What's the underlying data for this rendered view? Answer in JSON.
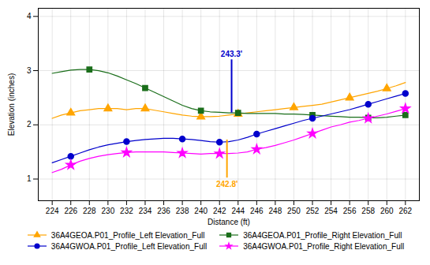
{
  "chart_data": {
    "type": "line",
    "xlabel": "Distance (ft)",
    "ylabel": "Elevation (inches)",
    "xlim": [
      222.5,
      263.5
    ],
    "ylim": [
      0.6,
      4.15
    ],
    "xticks": [
      224,
      226,
      228,
      230,
      232,
      234,
      236,
      238,
      240,
      242,
      244,
      246,
      248,
      250,
      252,
      254,
      256,
      258,
      260,
      262
    ],
    "yticks": [
      1,
      2,
      3,
      4
    ],
    "grid": true,
    "x": [
      224,
      225,
      226,
      227,
      228,
      229,
      230,
      231,
      232,
      233,
      234,
      235,
      236,
      237,
      238,
      239,
      240,
      241,
      242,
      243,
      244,
      245,
      246,
      247,
      248,
      249,
      250,
      251,
      252,
      253,
      254,
      255,
      256,
      257,
      258,
      259,
      260,
      261,
      262
    ],
    "series": [
      {
        "name": "36A4GEOA.P01_Profile_Left Elevation_Full",
        "color": "#FFA500",
        "marker": "triangle",
        "values": [
          2.12,
          2.18,
          2.22,
          2.26,
          2.28,
          2.3,
          2.3,
          2.3,
          2.28,
          2.3,
          2.3,
          2.27,
          2.24,
          2.21,
          2.18,
          2.16,
          2.15,
          2.15,
          2.16,
          2.18,
          2.2,
          2.22,
          2.24,
          2.26,
          2.28,
          2.3,
          2.32,
          2.34,
          2.36,
          2.38,
          2.42,
          2.46,
          2.5,
          2.54,
          2.58,
          2.62,
          2.67,
          2.72,
          2.78
        ],
        "marker_x": [
          226,
          230,
          234,
          240,
          244,
          250,
          256,
          260
        ],
        "marker_values": [
          2.22,
          2.3,
          2.3,
          2.15,
          2.2,
          2.32,
          2.5,
          2.67
        ]
      },
      {
        "name": "36A4GEOA.P01_Profile_Right Elevation_Full",
        "color": "#1a6e1a",
        "marker": "square",
        "values": [
          2.95,
          2.98,
          3.01,
          3.02,
          3.02,
          3.0,
          2.96,
          2.9,
          2.83,
          2.76,
          2.68,
          2.6,
          2.52,
          2.44,
          2.36,
          2.3,
          2.26,
          2.24,
          2.23,
          2.22,
          2.22,
          2.21,
          2.21,
          2.21,
          2.21,
          2.2,
          2.2,
          2.19,
          2.18,
          2.17,
          2.16,
          2.15,
          2.14,
          2.14,
          2.13,
          2.13,
          2.14,
          2.16,
          2.18
        ],
        "marker_x": [
          228,
          234,
          240,
          244,
          252,
          258,
          262
        ],
        "marker_values": [
          3.02,
          2.68,
          2.26,
          2.22,
          2.18,
          2.13,
          2.18
        ]
      },
      {
        "name": "36A4GWOA.P01_Profile_Left Elevation_Full",
        "color": "#0000cc",
        "marker": "circle",
        "values": [
          1.3,
          1.36,
          1.42,
          1.48,
          1.54,
          1.59,
          1.63,
          1.66,
          1.69,
          1.71,
          1.73,
          1.74,
          1.75,
          1.75,
          1.74,
          1.73,
          1.71,
          1.69,
          1.68,
          1.69,
          1.72,
          1.77,
          1.83,
          1.88,
          1.93,
          1.98,
          2.03,
          2.08,
          2.12,
          2.16,
          2.2,
          2.24,
          2.28,
          2.33,
          2.38,
          2.43,
          2.48,
          2.53,
          2.58
        ],
        "marker_x": [
          226,
          232,
          238,
          242,
          246,
          252,
          258,
          262
        ],
        "marker_values": [
          1.42,
          1.69,
          1.74,
          1.68,
          1.83,
          2.12,
          2.38,
          2.58
        ]
      },
      {
        "name": "36A4GWOA.P01_Profile_Right Elevation_Full",
        "color": "#ff00ff",
        "marker": "star",
        "values": [
          1.12,
          1.18,
          1.26,
          1.33,
          1.38,
          1.42,
          1.45,
          1.47,
          1.49,
          1.5,
          1.5,
          1.5,
          1.5,
          1.49,
          1.48,
          1.47,
          1.46,
          1.47,
          1.47,
          1.47,
          1.48,
          1.5,
          1.55,
          1.58,
          1.62,
          1.67,
          1.72,
          1.78,
          1.84,
          1.9,
          1.96,
          2.0,
          2.05,
          2.08,
          2.12,
          2.16,
          2.2,
          2.25,
          2.3
        ],
        "marker_x": [
          226,
          232,
          238,
          242,
          246,
          252,
          258,
          262
        ],
        "marker_values": [
          1.26,
          1.49,
          1.48,
          1.47,
          1.55,
          1.84,
          2.12,
          2.3
        ]
      }
    ],
    "annotations": [
      {
        "text": "242.8'",
        "x": 242.8,
        "y1": 1.02,
        "y2": 1.72,
        "label_y": 0.85,
        "color": "#FFA500"
      },
      {
        "text": "243.3'",
        "x": 243.3,
        "y1": 2.22,
        "y2": 3.2,
        "label_y": 3.25,
        "color": "#0000cc"
      }
    ]
  }
}
